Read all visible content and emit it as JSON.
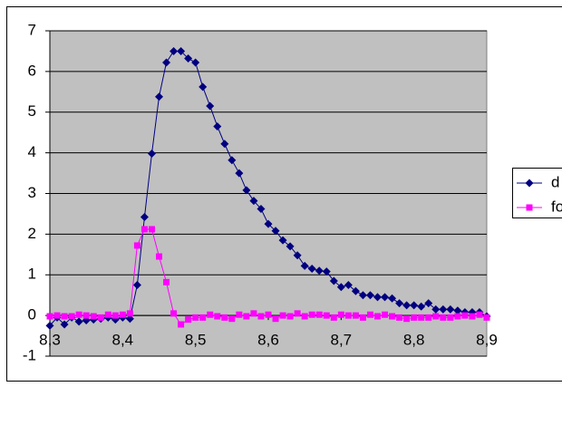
{
  "chart_data": {
    "type": "line",
    "x": [
      8.3,
      8.31,
      8.32,
      8.33,
      8.34,
      8.35,
      8.36,
      8.37,
      8.38,
      8.39,
      8.4,
      8.41,
      8.42,
      8.43,
      8.44,
      8.45,
      8.46,
      8.47,
      8.48,
      8.49,
      8.5,
      8.51,
      8.52,
      8.53,
      8.54,
      8.55,
      8.56,
      8.57,
      8.58,
      8.59,
      8.6,
      8.61,
      8.62,
      8.63,
      8.64,
      8.65,
      8.66,
      8.67,
      8.68,
      8.69,
      8.7,
      8.71,
      8.72,
      8.73,
      8.74,
      8.75,
      8.76,
      8.77,
      8.78,
      8.79,
      8.8,
      8.81,
      8.82,
      8.83,
      8.84,
      8.85,
      8.86,
      8.87,
      8.88,
      8.89,
      8.9
    ],
    "series": [
      {
        "name": "d",
        "color": "#000080",
        "marker": "diamond",
        "values": [
          -0.25,
          -0.05,
          -0.22,
          -0.05,
          -0.15,
          -0.12,
          -0.1,
          -0.08,
          -0.05,
          -0.1,
          -0.05,
          -0.08,
          0.75,
          2.42,
          3.98,
          5.38,
          6.22,
          6.5,
          6.5,
          6.32,
          6.22,
          5.62,
          5.15,
          4.65,
          4.22,
          3.82,
          3.5,
          3.08,
          2.82,
          2.62,
          2.25,
          2.08,
          1.85,
          1.7,
          1.48,
          1.22,
          1.15,
          1.1,
          1.08,
          0.85,
          0.7,
          0.75,
          0.6,
          0.5,
          0.5,
          0.45,
          0.45,
          0.42,
          0.3,
          0.25,
          0.25,
          0.22,
          0.3,
          0.15,
          0.15,
          0.15,
          0.12,
          0.08,
          0.08,
          0.08,
          -0.02
        ]
      },
      {
        "name": "fo",
        "color": "#ff00ff",
        "marker": "square",
        "values": [
          -0.02,
          0,
          -0.02,
          -0.02,
          0.02,
          0,
          -0.02,
          -0.05,
          0.02,
          0,
          0.02,
          0.05,
          1.72,
          2.12,
          2.12,
          1.45,
          0.82,
          0.05,
          -0.22,
          -0.1,
          -0.05,
          -0.05,
          0.02,
          -0.02,
          -0.05,
          -0.08,
          0.02,
          -0.02,
          0.05,
          -0.02,
          0.02,
          -0.08,
          0,
          -0.02,
          0.05,
          -0.02,
          0.02,
          0.02,
          0,
          -0.05,
          0.02,
          0,
          0,
          -0.05,
          0.02,
          -0.02,
          0.02,
          -0.02,
          -0.05,
          -0.08,
          -0.05,
          -0.05,
          -0.05,
          -0.02,
          -0.05,
          -0.05,
          -0.02,
          0,
          -0.02,
          0.02,
          -0.05
        ]
      }
    ],
    "xlim": [
      8.3,
      8.9
    ],
    "xticks": [
      {
        "value": 8.3,
        "label": "8,3"
      },
      {
        "value": 8.4,
        "label": "8,4"
      },
      {
        "value": 8.5,
        "label": "8,5"
      },
      {
        "value": 8.6,
        "label": "8,6"
      },
      {
        "value": 8.7,
        "label": "8,7"
      },
      {
        "value": 8.8,
        "label": "8,8"
      },
      {
        "value": 8.9,
        "label": "8,9"
      }
    ],
    "ylim": [
      -1,
      7
    ],
    "yticks": [
      -1,
      0,
      1,
      2,
      3,
      4,
      5,
      6,
      7
    ],
    "grid": true,
    "legend": "right"
  }
}
